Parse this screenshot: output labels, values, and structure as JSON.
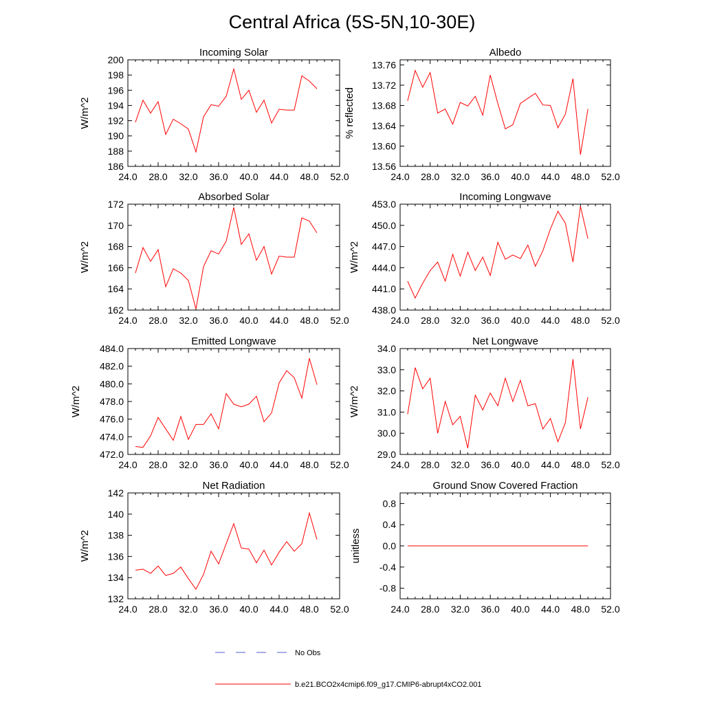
{
  "page": {
    "title": "Central Africa (5S-5N,10-30E)"
  },
  "colors": {
    "series": "#ff0000",
    "obs": "#4f5bd5",
    "axis": "#000000"
  },
  "legend": {
    "obs_label": "No Obs",
    "model_label": "b.e21.BCO2x4cmip6.f09_g17.CMIP6-abrupt4xCO2.001"
  },
  "chart_data": [
    {
      "type": "line",
      "title": "Incoming Solar",
      "xlabel": "",
      "ylabel": "W/m^2",
      "xlim": [
        24,
        52
      ],
      "ylim": [
        186,
        200
      ],
      "xticks": [
        24,
        28,
        32,
        36,
        40,
        44,
        48,
        52
      ],
      "xtick_labels": [
        "24.0",
        "28.0",
        "32.0",
        "36.0",
        "40.0",
        "44.0",
        "48.0",
        "52.0"
      ],
      "yticks": [
        186,
        188,
        190,
        192,
        194,
        196,
        198,
        200
      ],
      "ytick_labels": [
        "186",
        "188",
        "190",
        "192",
        "194",
        "196",
        "198",
        "200"
      ],
      "x": [
        25,
        26,
        27,
        28,
        29,
        30,
        31,
        32,
        33,
        34,
        35,
        36,
        37,
        38,
        39,
        40,
        41,
        42,
        43,
        44,
        45,
        46,
        47,
        48,
        49
      ],
      "series": [
        {
          "name": "b.e21.BCO2x4cmip6.f09_g17.CMIP6-abrupt4xCO2.001",
          "values": [
            191.8,
            194.7,
            193.0,
            194.5,
            190.2,
            192.2,
            191.6,
            190.9,
            187.9,
            192.5,
            194.1,
            193.9,
            195.2,
            198.8,
            194.8,
            196.0,
            193.1,
            194.7,
            191.7,
            193.5,
            193.4,
            193.4,
            197.9,
            197.2,
            196.2
          ]
        }
      ]
    },
    {
      "type": "line",
      "title": "Albedo",
      "xlabel": "",
      "ylabel": "% reflected",
      "xlim": [
        24,
        52
      ],
      "ylim": [
        13.56,
        13.77
      ],
      "xticks": [
        24,
        28,
        32,
        36,
        40,
        44,
        48,
        52
      ],
      "xtick_labels": [
        "24.0",
        "28.0",
        "32.0",
        "36.0",
        "40.0",
        "44.0",
        "48.0",
        "52.0"
      ],
      "yticks": [
        13.56,
        13.6,
        13.64,
        13.68,
        13.72,
        13.76
      ],
      "ytick_labels": [
        "13.56",
        "13.60",
        "13.64",
        "13.68",
        "13.72",
        "13.76"
      ],
      "x": [
        25,
        26,
        27,
        28,
        29,
        30,
        31,
        32,
        33,
        34,
        35,
        36,
        37,
        38,
        39,
        40,
        41,
        42,
        43,
        44,
        45,
        46,
        47,
        48,
        49
      ],
      "series": [
        {
          "name": "b.e21.BCO2x4cmip6.f09_g17.CMIP6-abrupt4xCO2.001",
          "values": [
            13.689,
            13.749,
            13.716,
            13.745,
            13.665,
            13.673,
            13.643,
            13.686,
            13.679,
            13.698,
            13.661,
            13.74,
            13.684,
            13.634,
            13.642,
            13.684,
            13.694,
            13.704,
            13.681,
            13.68,
            13.636,
            13.663,
            13.733,
            13.583,
            13.673
          ]
        }
      ]
    },
    {
      "type": "line",
      "title": "Absorbed Solar",
      "xlabel": "",
      "ylabel": "W/m^2",
      "xlim": [
        24,
        52
      ],
      "ylim": [
        162,
        172
      ],
      "xticks": [
        24,
        28,
        32,
        36,
        40,
        44,
        48,
        52
      ],
      "xtick_labels": [
        "24.0",
        "28.0",
        "32.0",
        "36.0",
        "40.0",
        "44.0",
        "48.0",
        "52.0"
      ],
      "yticks": [
        162,
        164,
        166,
        168,
        170,
        172
      ],
      "ytick_labels": [
        "162",
        "164",
        "166",
        "168",
        "170",
        "172"
      ],
      "x": [
        25,
        26,
        27,
        28,
        29,
        30,
        31,
        32,
        33,
        34,
        35,
        36,
        37,
        38,
        39,
        40,
        41,
        42,
        43,
        44,
        45,
        46,
        47,
        48,
        49
      ],
      "series": [
        {
          "name": "b.e21.BCO2x4cmip6.f09_g17.CMIP6-abrupt4xCO2.001",
          "values": [
            165.5,
            167.9,
            166.6,
            167.7,
            164.2,
            165.9,
            165.5,
            164.8,
            162.1,
            166.1,
            167.6,
            167.3,
            168.5,
            171.7,
            168.2,
            169.2,
            166.7,
            168.0,
            165.4,
            167.1,
            167.0,
            167.0,
            170.7,
            170.4,
            169.3
          ]
        }
      ]
    },
    {
      "type": "line",
      "title": "Incoming Longwave",
      "xlabel": "",
      "ylabel": "W/m^2",
      "xlim": [
        24,
        52
      ],
      "ylim": [
        438,
        453
      ],
      "xticks": [
        24,
        28,
        32,
        36,
        40,
        44,
        48,
        52
      ],
      "xtick_labels": [
        "24.0",
        "28.0",
        "32.0",
        "36.0",
        "40.0",
        "44.0",
        "48.0",
        "52.0"
      ],
      "yticks": [
        438,
        441,
        444,
        447,
        450,
        453
      ],
      "ytick_labels": [
        "438.0",
        "441.0",
        "444.0",
        "447.0",
        "450.0",
        "453.0"
      ],
      "x": [
        25,
        26,
        27,
        28,
        29,
        30,
        31,
        32,
        33,
        34,
        35,
        36,
        37,
        38,
        39,
        40,
        41,
        42,
        43,
        44,
        45,
        46,
        47,
        48,
        49
      ],
      "series": [
        {
          "name": "b.e21.BCO2x4cmip6.f09_g17.CMIP6-abrupt4xCO2.001",
          "values": [
            442.1,
            439.7,
            441.8,
            443.6,
            444.8,
            442.1,
            445.9,
            442.8,
            446.2,
            443.6,
            445.5,
            442.9,
            447.6,
            445.2,
            445.8,
            445.3,
            447.2,
            444.2,
            446.4,
            449.5,
            452.0,
            450.3,
            444.8,
            452.7,
            448.1
          ]
        }
      ]
    },
    {
      "type": "line",
      "title": "Emitted Longwave",
      "xlabel": "",
      "ylabel": "W/m^2",
      "xlim": [
        24,
        52
      ],
      "ylim": [
        472,
        484
      ],
      "xticks": [
        24,
        28,
        32,
        36,
        40,
        44,
        48,
        52
      ],
      "xtick_labels": [
        "24.0",
        "28.0",
        "32.0",
        "36.0",
        "40.0",
        "44.0",
        "48.0",
        "52.0"
      ],
      "yticks": [
        472,
        474,
        476,
        478,
        480,
        482,
        484
      ],
      "ytick_labels": [
        "472.0",
        "474.0",
        "476.0",
        "478.0",
        "480.0",
        "482.0",
        "484.0"
      ],
      "x": [
        25,
        26,
        27,
        28,
        29,
        30,
        31,
        32,
        33,
        34,
        35,
        36,
        37,
        38,
        39,
        40,
        41,
        42,
        43,
        44,
        45,
        46,
        47,
        48,
        49
      ],
      "series": [
        {
          "name": "b.e21.BCO2x4cmip6.f09_g17.CMIP6-abrupt4xCO2.001",
          "values": [
            472.9,
            472.8,
            474.1,
            476.2,
            474.9,
            473.6,
            476.3,
            473.7,
            475.4,
            475.4,
            476.6,
            474.9,
            478.9,
            477.7,
            477.4,
            477.7,
            478.6,
            475.7,
            476.7,
            480.1,
            481.5,
            480.7,
            478.4,
            482.9,
            479.9
          ]
        }
      ]
    },
    {
      "type": "line",
      "title": "Net Longwave",
      "xlabel": "",
      "ylabel": "W/m^2",
      "xlim": [
        24,
        52
      ],
      "ylim": [
        29,
        34
      ],
      "xticks": [
        24,
        28,
        32,
        36,
        40,
        44,
        48,
        52
      ],
      "xtick_labels": [
        "24.0",
        "28.0",
        "32.0",
        "36.0",
        "40.0",
        "44.0",
        "48.0",
        "52.0"
      ],
      "yticks": [
        29,
        30,
        31,
        32,
        33,
        34
      ],
      "ytick_labels": [
        "29.0",
        "30.0",
        "31.0",
        "32.0",
        "33.0",
        "34.0"
      ],
      "x": [
        25,
        26,
        27,
        28,
        29,
        30,
        31,
        32,
        33,
        34,
        35,
        36,
        37,
        38,
        39,
        40,
        41,
        42,
        43,
        44,
        45,
        46,
        47,
        48,
        49
      ],
      "series": [
        {
          "name": "b.e21.BCO2x4cmip6.f09_g17.CMIP6-abrupt4xCO2.001",
          "values": [
            30.9,
            33.1,
            32.1,
            32.6,
            30.0,
            31.5,
            30.4,
            30.8,
            29.3,
            31.8,
            31.1,
            31.9,
            31.3,
            32.6,
            31.5,
            32.5,
            31.3,
            31.4,
            30.2,
            30.7,
            29.6,
            30.5,
            33.5,
            30.2,
            31.7
          ]
        }
      ]
    },
    {
      "type": "line",
      "title": "Net Radiation",
      "xlabel": "",
      "ylabel": "W/m^2",
      "xlim": [
        24,
        52
      ],
      "ylim": [
        132,
        142
      ],
      "xticks": [
        24,
        28,
        32,
        36,
        40,
        44,
        48,
        52
      ],
      "xtick_labels": [
        "24.0",
        "28.0",
        "32.0",
        "36.0",
        "40.0",
        "44.0",
        "48.0",
        "52.0"
      ],
      "yticks": [
        132,
        134,
        136,
        138,
        140,
        142
      ],
      "ytick_labels": [
        "132",
        "134",
        "136",
        "138",
        "140",
        "142"
      ],
      "x": [
        25,
        26,
        27,
        28,
        29,
        30,
        31,
        32,
        33,
        34,
        35,
        36,
        37,
        38,
        39,
        40,
        41,
        42,
        43,
        44,
        45,
        46,
        47,
        48,
        49
      ],
      "series": [
        {
          "name": "b.e21.BCO2x4cmip6.f09_g17.CMIP6-abrupt4xCO2.001",
          "values": [
            134.7,
            134.8,
            134.4,
            135.1,
            134.2,
            134.4,
            135.0,
            133.9,
            132.9,
            134.3,
            136.5,
            135.3,
            137.2,
            139.1,
            136.8,
            136.7,
            135.4,
            136.6,
            135.2,
            136.4,
            137.4,
            136.5,
            137.2,
            140.1,
            137.6
          ]
        }
      ]
    },
    {
      "type": "line",
      "title": "Ground Snow Covered Fraction",
      "xlabel": "",
      "ylabel": "unitless",
      "xlim": [
        24,
        52
      ],
      "ylim": [
        -1.0,
        1.0
      ],
      "xticks": [
        24,
        28,
        32,
        36,
        40,
        44,
        48,
        52
      ],
      "xtick_labels": [
        "24.0",
        "28.0",
        "32.0",
        "36.0",
        "40.0",
        "44.0",
        "48.0",
        "52.0"
      ],
      "yticks": [
        -0.8,
        -0.4,
        0.0,
        0.4,
        0.8
      ],
      "ytick_labels": [
        "-0.8",
        "-0.4",
        "0.0",
        "0.4",
        "0.8"
      ],
      "x": [
        25,
        26,
        27,
        28,
        29,
        30,
        31,
        32,
        33,
        34,
        35,
        36,
        37,
        38,
        39,
        40,
        41,
        42,
        43,
        44,
        45,
        46,
        47,
        48,
        49
      ],
      "series": [
        {
          "name": "b.e21.BCO2x4cmip6.f09_g17.CMIP6-abrupt4xCO2.001",
          "values": [
            0,
            0,
            0,
            0,
            0,
            0,
            0,
            0,
            0,
            0,
            0,
            0,
            0,
            0,
            0,
            0,
            0,
            0,
            0,
            0,
            0,
            0,
            0,
            0,
            0
          ]
        }
      ]
    }
  ]
}
